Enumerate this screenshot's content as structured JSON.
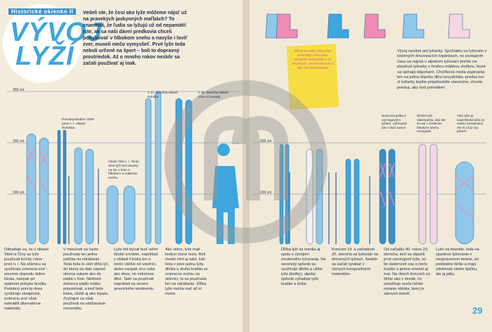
{
  "header": {
    "kicker": "Historické okienko II",
    "title_line1": "VÝVOJ",
    "title_line2": "LYŽÍ"
  },
  "intro": "Vedeli ste, že čosi ako lyže môžeme nájsť už na pravekých jaskynných maľbách? To znamená, že ľudia sa lyžujú už od nepamäti! Iste, ak sa naši dávni predkovia chceli pohybovať v hlbokom snehu a navyše i loviť zver, museli niečo vymyslieť. Prvé lyže teda neboli určené na šport – boli to dopravný prostriedok. Až o mnoho rokov neskôr sa začali používať aj inak.",
  "scale": {
    "top": "300 cm",
    "middle": "200 cm",
    "bottom": "100 cm"
  },
  "annotations": {
    "sweden": "Pravdepodobne 3200 pred n. l. oblasť Švédska",
    "norway": "z 17. storočia oblasť Nórska",
    "usa": "z 19. storočia oblasť USA a Kanady",
    "forest": "Okolo 750 n. l. Tento druh lyží bol vhodný na lov v lese a hlbokom a mäkkom snehu."
  },
  "note": "PRVÉ PEVNÉ OCELOVÉ VIAZANIE VYNAŠIEL SONDRE NORHEIM V 19. STOROČÍ. STAROSTLIVO Z NEJ TO PRIPOMÍNA!",
  "right_intro": "Vývoj neušiel ani lyžiarky. Spočiatku sa lyžovalo v kožených šnurovacích topánkach, no postupom času sa najmä v alpskom lyžovaní prešlo na plastové lyžiarky s hrubou mäkkou vložkou, ktoré sa upínajú klipsňami. Chvíľková móda zapínania len na jednu klipsňu dlho nevydržala, predsa len si lyžiarky lepšie prispôsobíte viacerými, chcete predsa, aby boli pohodlné!",
  "small_notes": [
    "Nová éra prišla s carvingovými lyžami. Lyžovanie ide o dosť samo!",
    "Široké lyže zabezpečia, aby ste sa ani v čerstvom hlbokom snehu nezapadli.",
    "Táto lyža je superširoká lyža so vratou snowboard. Ale to už je iný príbeh."
  ],
  "columns": [
    "Odhaduje sa, že v oblasti Sibíri a Číny sa lyže používali tisícky rokov pred n. l. Na skĺznicu sa využívala zvieracia srsť – smerom dopredu dobre kĺzala, naopak pri spätnom pohybe brzdila. Podobný princíp dnes využívajú skialpinisti, zvieraciu srsť však nahradili alternatívne materiály.",
    "V minulosti sa často používala len jedna palička na odrážanie. Teda bola to skôr dlhá tyč, do ktorej sa dalo zaprieť oboma rukami ako do pádla v člne. Niektoré dokonca pádlo trošku pripomínali, a keď bolo treba, slúžili aj ako lopata. Zvyčajne sa však používali na udržiavanie rovnováhy.",
    "Lyže též bývali buď veľmi široké a krátke, napríklad v oblasti Fínska len o niečo väčšie od snežníc, alebo naopak síce úzke ako dnes, no extrémne dlhé. Také sa používali napríklad na severe amerického kontinentu.",
    "Ako vidno, lyže mali kedysi rôzne tvary. Boli medzi nimi aj také, kde bola v páre jedna lyža dlhšia a druhá kratšia so zvieracou srsťou na skĺznici, tá sa používala len na odrážanie. Dĺžka lyže mohla mať až tri metre.",
    "Dĺžka lyží sa menila aj spolu s vývojom moderného lyžovania. Na severský spôsob sa využívajú dlhšie a užšie lyže (bežky), alpský spôsob vyžaduje lyže kratšie a širšie.",
    "Koncom 19. a začiatkom 20. storočia sa lyžovalo na drevených lyžiach. Neskôr sa začali vyrábať z rôznych kompozitných materiálov.",
    "Od začiatku 90. rokov 20. storočia, keď sa objavili prvé carvingové lyže, sú tie slalomové zas o niečo kratšie a jemne zmenili aj tvar. Na oboch koncoch sú širšie ako v strede, čo umožňuje oveľa ľahšie rezanie oblúka, ktorý je zároveň menší.",
    "Lyže na freeride, teda na zjazdové lyžovanie v neupravenom teréne, sú podstatne širšie a majú zdvihnuté nielen špičku, ale aj pätu."
  ],
  "page_number": "29"
}
